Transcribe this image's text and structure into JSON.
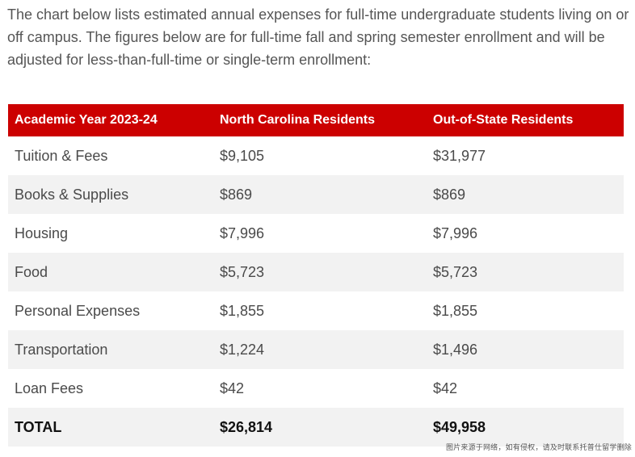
{
  "intro": "The chart below lists estimated annual expenses for full-time undergraduate students living on or off campus. The figures below are for full-time fall and spring semester enrollment and will be adjusted for less-than-full-time or single-term enrollment:",
  "colors": {
    "header_bg": "#cc0000",
    "header_text": "#ffffff",
    "stripe_bg": "#f2f2f2"
  },
  "table": {
    "headers": [
      "Academic Year 2023-24",
      "North Carolina Residents",
      "Out-of-State Residents"
    ],
    "rows": [
      [
        "Tuition & Fees",
        "$9,105",
        "$31,977"
      ],
      [
        "Books & Supplies",
        "$869",
        "$869"
      ],
      [
        "Housing",
        "$7,996",
        "$7,996"
      ],
      [
        "Food",
        "$5,723",
        "$5,723"
      ],
      [
        "Personal Expenses",
        "$1,855",
        "$1,855"
      ],
      [
        "Transportation",
        "$1,224",
        "$1,496"
      ],
      [
        "Loan Fees",
        "$42",
        "$42"
      ],
      [
        "TOTAL",
        "$26,814",
        "$49,958"
      ]
    ]
  },
  "watermark": "图片来源于网络，如有侵权，请及时联系托普仕留学删除"
}
